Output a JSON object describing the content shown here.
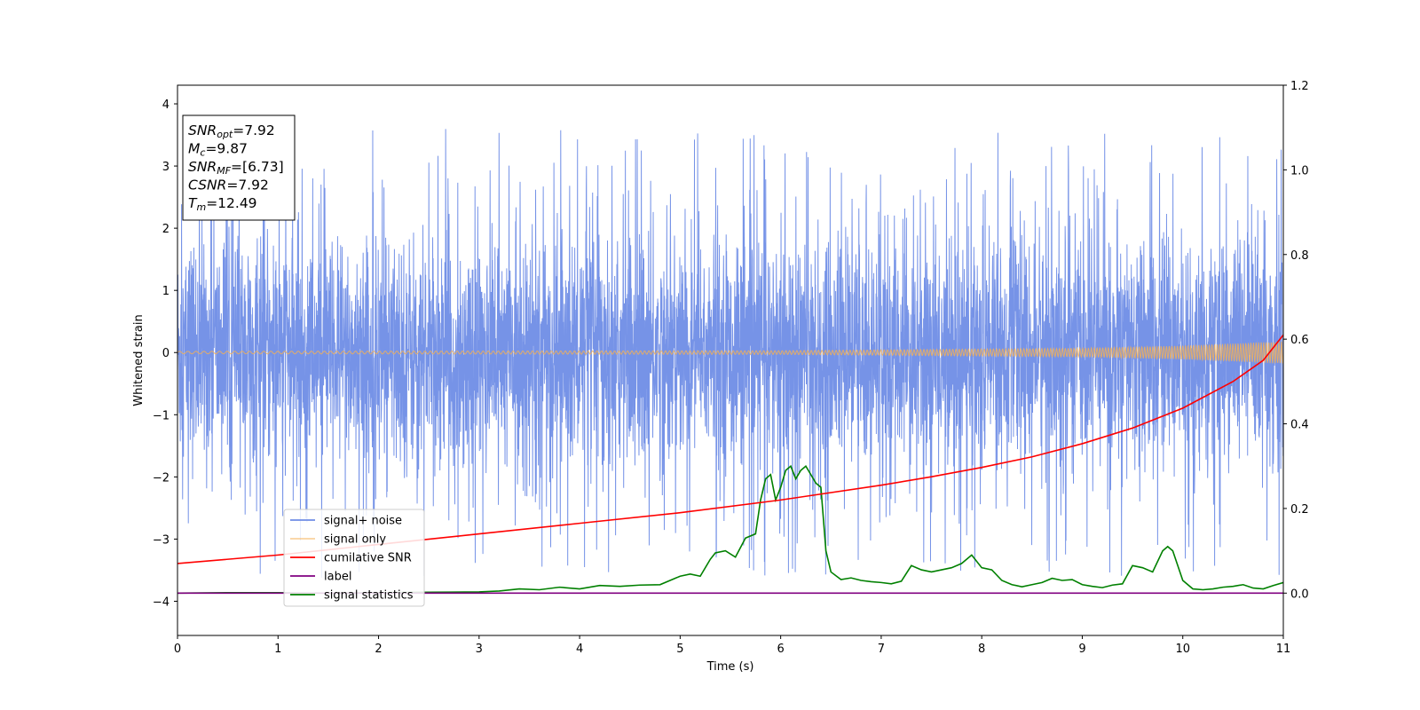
{
  "chart_data": {
    "type": "line",
    "xlabel": "Time (s)",
    "ylabel": "Whitened strain",
    "xlim": [
      0,
      11
    ],
    "ylim": [
      -4.55,
      4.3
    ],
    "ylim_right": [
      -0.1,
      1.2
    ],
    "xticks": [
      0,
      1,
      2,
      3,
      4,
      5,
      6,
      7,
      8,
      9,
      10,
      11
    ],
    "yticks": [
      -4,
      -3,
      -2,
      -1,
      0,
      1,
      2,
      3,
      4
    ],
    "yticks_right": [
      0.0,
      0.2,
      0.4,
      0.6,
      0.8,
      1.0,
      1.2
    ],
    "grid": false,
    "legend_position": "lower-left",
    "infobox": {
      "lines": [
        {
          "main": "SNR",
          "sub": "opt",
          "value": "=7.92"
        },
        {
          "main": "M",
          "sub": "c",
          "value": "=9.87"
        },
        {
          "main": "SNR",
          "sub": "MF",
          "value": "=[6.73]"
        },
        {
          "main": "CSNR",
          "sub": "",
          "value": "=7.92"
        },
        {
          "main": "T",
          "sub": "m",
          "value": "=12.49"
        }
      ]
    },
    "series": [
      {
        "name": "signal+ noise",
        "color": "#6f8de6",
        "axis": "left",
        "description_stats": {
          "std": 0.9,
          "spike_max": 3.93,
          "spike_min": -4.18
        }
      },
      {
        "name": "signal only",
        "color": "#f5b056",
        "axis": "left",
        "envelope": {
          "x": [
            0,
            6,
            9,
            10,
            11
          ],
          "amplitude": [
            0.02,
            0.03,
            0.07,
            0.11,
            0.18
          ]
        }
      },
      {
        "name": "cumilative SNR",
        "color": "#ff0000",
        "axis": "right",
        "x": [
          0,
          1,
          2,
          3,
          4,
          5,
          6,
          7,
          7.5,
          8,
          8.5,
          9,
          9.5,
          10,
          10.5,
          10.8,
          11
        ],
        "y": [
          0.07,
          0.09,
          0.115,
          0.14,
          0.165,
          0.19,
          0.22,
          0.255,
          0.275,
          0.297,
          0.322,
          0.353,
          0.39,
          0.437,
          0.5,
          0.55,
          0.61
        ]
      },
      {
        "name": "label",
        "color": "#800080",
        "axis": "right",
        "x": [
          0,
          11
        ],
        "y": [
          0,
          0
        ]
      },
      {
        "name": "signal statistics",
        "color": "#008000",
        "axis": "right",
        "x": [
          0,
          0.5,
          1,
          1.5,
          2,
          2.5,
          3,
          3.2,
          3.4,
          3.6,
          3.8,
          4.0,
          4.2,
          4.4,
          4.6,
          4.8,
          4.9,
          5.0,
          5.1,
          5.2,
          5.3,
          5.35,
          5.45,
          5.55,
          5.65,
          5.75,
          5.8,
          5.85,
          5.9,
          5.95,
          6.0,
          6.05,
          6.1,
          6.15,
          6.2,
          6.25,
          6.3,
          6.35,
          6.4,
          6.45,
          6.5,
          6.6,
          6.7,
          6.8,
          6.9,
          7.0,
          7.1,
          7.2,
          7.3,
          7.4,
          7.5,
          7.6,
          7.7,
          7.8,
          7.9,
          8.0,
          8.1,
          8.2,
          8.3,
          8.4,
          8.5,
          8.6,
          8.7,
          8.8,
          8.9,
          9.0,
          9.1,
          9.2,
          9.3,
          9.4,
          9.5,
          9.6,
          9.7,
          9.8,
          9.85,
          9.9,
          10.0,
          10.1,
          10.2,
          10.3,
          10.4,
          10.5,
          10.6,
          10.7,
          10.8,
          10.9,
          11.0
        ],
        "y": [
          0.0,
          0.001,
          0.001,
          0.0,
          0.001,
          0.002,
          0.003,
          0.005,
          0.01,
          0.008,
          0.014,
          0.01,
          0.018,
          0.016,
          0.019,
          0.02,
          0.03,
          0.04,
          0.045,
          0.04,
          0.08,
          0.095,
          0.1,
          0.085,
          0.13,
          0.14,
          0.22,
          0.27,
          0.28,
          0.22,
          0.25,
          0.29,
          0.3,
          0.27,
          0.29,
          0.3,
          0.28,
          0.26,
          0.25,
          0.1,
          0.05,
          0.032,
          0.036,
          0.03,
          0.027,
          0.025,
          0.022,
          0.028,
          0.065,
          0.055,
          0.05,
          0.055,
          0.06,
          0.07,
          0.09,
          0.06,
          0.055,
          0.03,
          0.02,
          0.015,
          0.02,
          0.025,
          0.035,
          0.03,
          0.032,
          0.02,
          0.016,
          0.013,
          0.019,
          0.022,
          0.065,
          0.06,
          0.05,
          0.1,
          0.11,
          0.1,
          0.03,
          0.01,
          0.008,
          0.01,
          0.014,
          0.016,
          0.02,
          0.012,
          0.01,
          0.018,
          0.025
        ]
      }
    ]
  }
}
